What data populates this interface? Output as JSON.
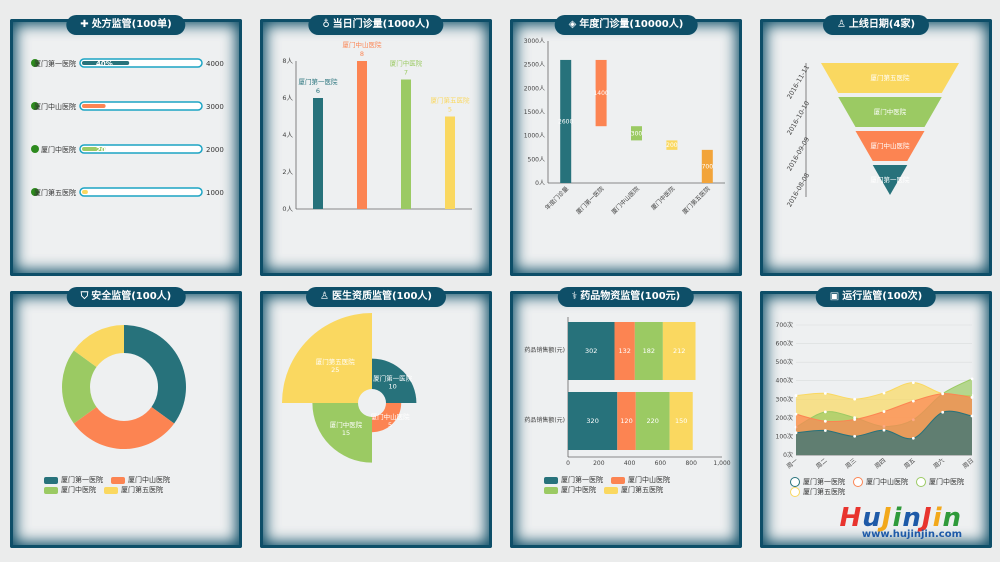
{
  "panels": {
    "p1": {
      "title": "处方监管(100单)",
      "icon": "pill-icon"
    },
    "p2": {
      "title": "当日门诊量(1000人)",
      "icon": "stethoscope-icon"
    },
    "p3": {
      "title": "年度门诊量(10000人)",
      "icon": "diamond-icon"
    },
    "p4": {
      "title": "上线日期(4家)",
      "icon": "person-icon"
    },
    "p5": {
      "title": "安全监管(100人)",
      "icon": "shield-icon"
    },
    "p6": {
      "title": "医生资质监管(100人)",
      "icon": "doctor-icon"
    },
    "p7": {
      "title": "药品物资监管(100元)",
      "icon": "pills-icon"
    },
    "p8": {
      "title": "运行监管(100次)",
      "icon": "monitor-icon"
    }
  },
  "colors": {
    "teal": "#27727b",
    "orange": "#fc8452",
    "green": "#9bca63",
    "yellow": "#fad860",
    "frame": "#0e4f68",
    "dot": "#2d8a1e"
  },
  "chart_data": [
    {
      "id": "prescription",
      "type": "bar",
      "orientation": "horizontal",
      "categories": [
        "厦门第一医院",
        "厦门中山医院",
        "厦门中医院",
        "厦门第五医院"
      ],
      "values": [
        "40%",
        "",
        "20%",
        ""
      ],
      "progress": [
        0.4,
        0.2,
        0.2,
        0.05
      ],
      "totals": [
        4000,
        3000,
        2000,
        1000
      ]
    },
    {
      "id": "daily",
      "type": "bar",
      "categories": [
        "厦门第一医院",
        "厦门中山医院",
        "厦门中医院",
        "厦门第五医院"
      ],
      "values": [
        6,
        8,
        7,
        5
      ],
      "ylim": [
        0,
        8
      ],
      "yticks": [
        "0人",
        "2人",
        "4人",
        "6人",
        "8人"
      ]
    },
    {
      "id": "annual",
      "type": "bar",
      "subtype": "waterfall",
      "categories": [
        "年度门诊量",
        "厦门第一医院",
        "厦门中山医院",
        "厦门中医院",
        "厦门第五医院"
      ],
      "labels": [
        "2600",
        "1400",
        "300",
        "200",
        "700"
      ],
      "bases": [
        0,
        1200,
        900,
        700,
        0
      ],
      "values": [
        2600,
        1400,
        300,
        200,
        700
      ],
      "ylim": [
        0,
        3000
      ],
      "yticks": [
        "0人",
        "500人",
        "1000人",
        "1500人",
        "2000人",
        "2500人",
        "3000人"
      ]
    },
    {
      "id": "online",
      "type": "funnel",
      "categories": [
        "厦门第五医院",
        "厦门中医院",
        "厦门中山医院",
        "厦门第一医院"
      ],
      "values": [
        4,
        3,
        2,
        1
      ],
      "dates": [
        "2016-08-08",
        "2016-09-09",
        "2016-10-10",
        "2016-11-11"
      ]
    },
    {
      "id": "safety",
      "type": "pie",
      "subtype": "donut",
      "categories": [
        "厦门第一医院",
        "厦门中山医院",
        "厦门中医院",
        "厦门第五医院"
      ],
      "values": [
        35,
        30,
        20,
        15
      ]
    },
    {
      "id": "doctor",
      "type": "pie",
      "subtype": "rose",
      "categories": [
        "厦门第一医院",
        "厦门中山医院",
        "厦门中医院",
        "厦门第五医院"
      ],
      "values": [
        10,
        5,
        15,
        25
      ]
    },
    {
      "id": "medicine",
      "type": "bar",
      "orientation": "horizontal",
      "stacked": true,
      "categories": [
        "药品销售额(元)",
        "药品销售额(元)"
      ],
      "series": [
        {
          "name": "厦门第一医院",
          "values": [
            320,
            302
          ]
        },
        {
          "name": "厦门中山医院",
          "values": [
            120,
            132
          ]
        },
        {
          "name": "厦门中医院",
          "values": [
            220,
            182
          ]
        },
        {
          "name": "厦门第五医院",
          "values": [
            150,
            212
          ]
        }
      ],
      "xlim": [
        0,
        1000
      ],
      "xticks": [
        "0",
        "200",
        "400",
        "600",
        "800",
        "1,000"
      ]
    },
    {
      "id": "running",
      "type": "area",
      "categories": [
        "周一",
        "周二",
        "周三",
        "周四",
        "周五",
        "周六",
        "周日"
      ],
      "series": [
        {
          "name": "厦门第一医院",
          "values": [
            120,
            132,
            101,
            134,
            90,
            230,
            210
          ]
        },
        {
          "name": "厦门中山医院",
          "values": [
            220,
            182,
            191,
            234,
            290,
            330,
            310
          ]
        },
        {
          "name": "厦门中医院",
          "values": [
            150,
            232,
            201,
            154,
            190,
            330,
            410
          ]
        },
        {
          "name": "厦门第五医院",
          "values": [
            320,
            332,
            301,
            334,
            390,
            330,
            320
          ]
        }
      ],
      "ylim": [
        0,
        700
      ],
      "yticks": [
        "0次",
        "100次",
        "200次",
        "300次",
        "400次",
        "500次",
        "600次",
        "700次"
      ]
    }
  ],
  "watermark": {
    "logo": "HuJinJin",
    "url": "www.hujinjin.com"
  }
}
